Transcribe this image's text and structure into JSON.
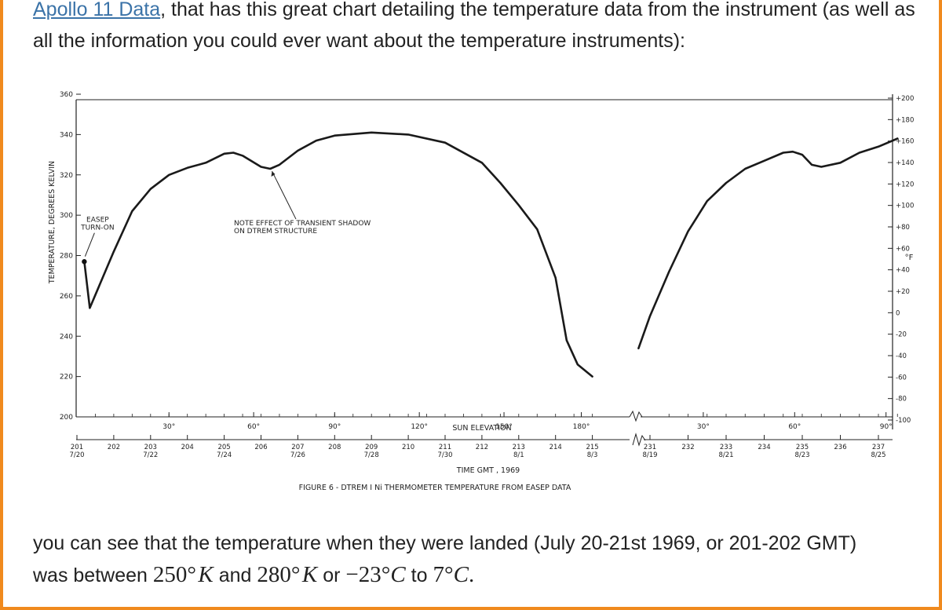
{
  "intro": {
    "link_text": "Apollo 11 Data",
    "text": ", that has this great chart detailing the temperature data from the instrument (as well as all the information you could ever want about the temperature instruments):"
  },
  "outro": {
    "line1": "you can see that the temperature when they were landed (July 20-21st 1969, or 201-202 GMT)",
    "was_between": "was between",
    "m1_num": "250",
    "m1_unit": "K",
    "and": "and",
    "m2_num": "280",
    "m2_unit": "K",
    "or": "or",
    "m3_num": "−23",
    "m3_unit": "C",
    "to": "to",
    "m4_num": "7",
    "m4_unit": "C",
    "end": "."
  },
  "colors": {
    "frame": "#f08a1e",
    "link": "#3b73a8",
    "ink": "#222222"
  },
  "chart_data": {
    "type": "line",
    "title": "FIGURE 6  -  DTREM I Ni THERMOMETER TEMPERATURE FROM EASEP DATA",
    "xlabel": "TIME GMT , 1969",
    "ylabel": "TEMPERATURE, DEGREES KELVIN",
    "y2label": "°F",
    "sun_elevation_label": "SUN ELEVATION",
    "ylim": [
      200,
      360
    ],
    "yticks": [
      "200",
      "220",
      "240",
      "260",
      "280",
      "300",
      "320",
      "340",
      "360"
    ],
    "y2ticks": [
      "-100",
      "-80",
      "-60",
      "-40",
      "-20",
      "0",
      "+20",
      "+40",
      "+60",
      "+80",
      "+100",
      "+120",
      "+140",
      "+160",
      "+180",
      "+200"
    ],
    "x_days_segment1": [
      {
        "day": "201",
        "date": "7/20"
      },
      {
        "day": "202",
        "date": ""
      },
      {
        "day": "203",
        "date": "7/22"
      },
      {
        "day": "204",
        "date": ""
      },
      {
        "day": "205",
        "date": "7/24"
      },
      {
        "day": "206",
        "date": ""
      },
      {
        "day": "207",
        "date": "7/26"
      },
      {
        "day": "208",
        "date": ""
      },
      {
        "day": "209",
        "date": "7/28"
      },
      {
        "day": "210",
        "date": ""
      },
      {
        "day": "211",
        "date": "7/30"
      },
      {
        "day": "212",
        "date": ""
      },
      {
        "day": "213",
        "date": "8/1"
      },
      {
        "day": "214",
        "date": ""
      },
      {
        "day": "215",
        "date": "8/3"
      }
    ],
    "x_days_segment2": [
      {
        "day": "231",
        "date": "8/19"
      },
      {
        "day": "232",
        "date": ""
      },
      {
        "day": "233",
        "date": "8/21"
      },
      {
        "day": "234",
        "date": ""
      },
      {
        "day": "235",
        "date": "8/23"
      },
      {
        "day": "236",
        "date": ""
      },
      {
        "day": "237",
        "date": "8/25"
      }
    ],
    "sun_elevation_ticks": [
      {
        "label": "30°",
        "day": 203.5
      },
      {
        "label": "60°",
        "day": 205.8
      },
      {
        "label": "90°",
        "day": 208.0
      },
      {
        "label": "120°",
        "day": 210.3
      },
      {
        "label": "150°",
        "day": 212.6
      },
      {
        "label": "180°",
        "day": 214.7
      },
      {
        "label": "30°",
        "day": 232.4
      },
      {
        "label": "60°",
        "day": 234.8
      },
      {
        "label": "90°",
        "day": 237.2
      }
    ],
    "annotations": [
      {
        "text_lines": [
          "EASEP",
          "TURN-ON"
        ],
        "x": 201.2,
        "y": 278
      },
      {
        "text_lines": [
          "NOTE EFFECT OF TRANSIENT SHADOW",
          "ON DTREM STRUCTURE"
        ],
        "x": 206.0,
        "y": 323
      }
    ],
    "series": [
      {
        "segment": 1,
        "points": [
          [
            201.2,
            277
          ],
          [
            201.35,
            254
          ],
          [
            202.0,
            282
          ],
          [
            202.5,
            302
          ],
          [
            203.0,
            313
          ],
          [
            203.5,
            320
          ],
          [
            204.0,
            323.5
          ],
          [
            204.5,
            326
          ],
          [
            205.0,
            330.5
          ],
          [
            205.25,
            331
          ],
          [
            205.5,
            329.5
          ],
          [
            206.0,
            324
          ],
          [
            206.25,
            323
          ],
          [
            206.5,
            325
          ],
          [
            207.0,
            332
          ],
          [
            207.5,
            337
          ],
          [
            208.0,
            339.5
          ],
          [
            209.0,
            341
          ],
          [
            210.0,
            340
          ],
          [
            211.0,
            336
          ],
          [
            212.0,
            326
          ],
          [
            212.5,
            316
          ],
          [
            213.0,
            305
          ],
          [
            213.5,
            293
          ],
          [
            214.0,
            269
          ],
          [
            214.3,
            238
          ],
          [
            214.6,
            226
          ],
          [
            215.0,
            220
          ]
        ]
      },
      {
        "segment": 2,
        "points": [
          [
            230.7,
            234
          ],
          [
            231.0,
            250
          ],
          [
            231.5,
            272
          ],
          [
            232.0,
            292
          ],
          [
            232.5,
            307
          ],
          [
            233.0,
            316
          ],
          [
            233.5,
            323
          ],
          [
            234.0,
            327
          ],
          [
            234.5,
            331
          ],
          [
            234.75,
            331.5
          ],
          [
            235.0,
            330
          ],
          [
            235.25,
            325
          ],
          [
            235.5,
            324
          ],
          [
            236.0,
            326
          ],
          [
            236.5,
            331
          ],
          [
            237.0,
            334
          ],
          [
            237.5,
            338
          ]
        ]
      }
    ]
  }
}
